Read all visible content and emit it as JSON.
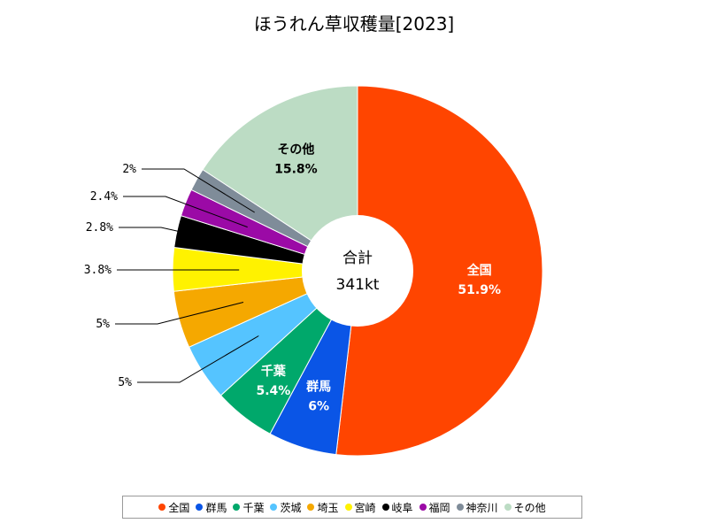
{
  "chart_data": {
    "type": "pie",
    "title": "ほうれん草収穫量[2023]",
    "center_label": "合計",
    "center_value": "341kt",
    "slices": [
      {
        "name": "全国",
        "value": 51.9,
        "label": "51.9%",
        "color": "#ff4500"
      },
      {
        "name": "群馬",
        "value": 6.0,
        "label": "6%",
        "color": "#0a55e6"
      },
      {
        "name": "千葉",
        "value": 5.4,
        "label": "5.4%",
        "color": "#00a86b"
      },
      {
        "name": "茨城",
        "value": 5.0,
        "label": "5%",
        "color": "#55c4ff"
      },
      {
        "name": "埼玉",
        "value": 5.0,
        "label": "5%",
        "color": "#f5a800"
      },
      {
        "name": "宮崎",
        "value": 3.8,
        "label": "3.8%",
        "color": "#fff200"
      },
      {
        "name": "岐阜",
        "value": 2.8,
        "label": "2.8%",
        "color": "#000000"
      },
      {
        "name": "福岡",
        "value": 2.4,
        "label": "2.4%",
        "color": "#9b0aa6"
      },
      {
        "name": "神奈川",
        "value": 2.0,
        "label": "2%",
        "color": "#7f8c99"
      },
      {
        "name": "その他",
        "value": 15.8,
        "label": "15.8%",
        "color": "#bcdcc4"
      }
    ]
  }
}
